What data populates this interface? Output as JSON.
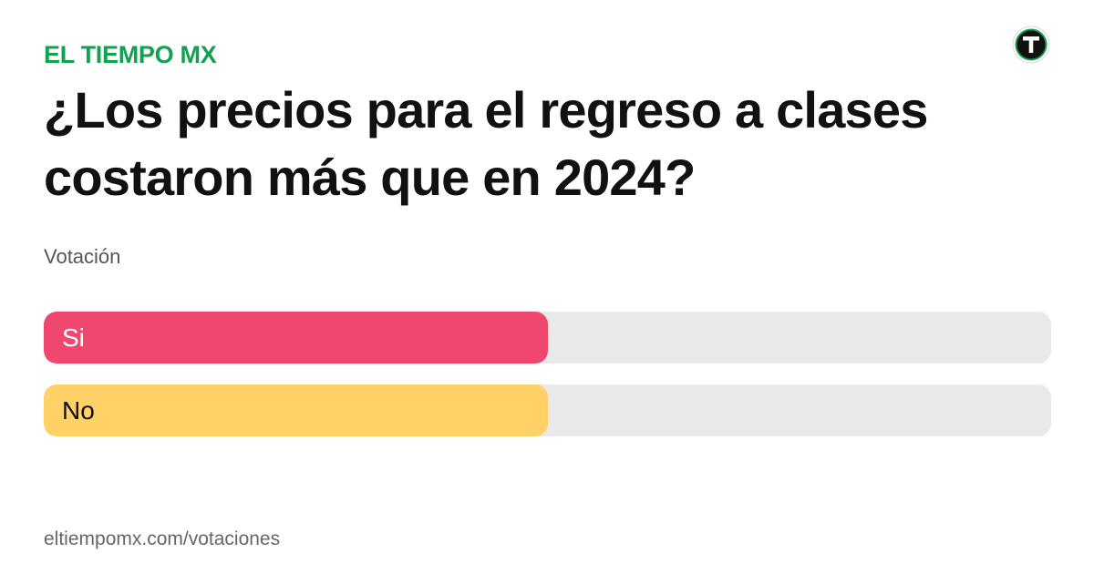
{
  "header": {
    "brand": "EL TIEMPO MX",
    "logo_icon": "el-tiempo-t-logo-icon"
  },
  "poll": {
    "question": "¿Los precios para el regreso a clases costaron más que en 2024?",
    "type_label": "Votación",
    "options": [
      {
        "label": "Si",
        "share": 0.5,
        "color": "#f0476f",
        "text_color": "#ffffff"
      },
      {
        "label": "No",
        "share": 0.5,
        "color": "#ffd166",
        "text_color": "#111111"
      }
    ]
  },
  "footer": {
    "url": "eltiempomx.com/votaciones"
  },
  "colors": {
    "brand": "#12a150",
    "track": "#e9e9e9"
  }
}
